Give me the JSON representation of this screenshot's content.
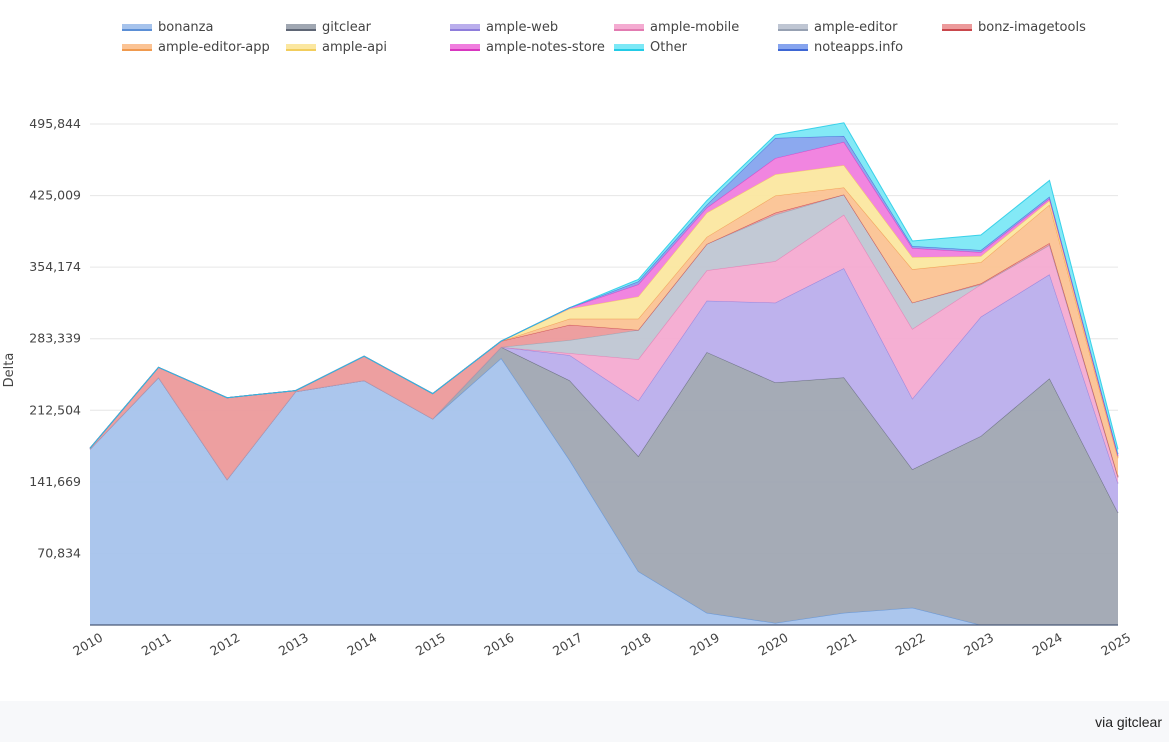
{
  "chart_data": {
    "type": "area",
    "stacked": true,
    "title": "",
    "xlabel": "",
    "ylabel": "Delta",
    "ylim": [
      0,
      495844
    ],
    "yticks": [
      "70,834",
      "141,669",
      "212,504",
      "283,339",
      "354,174",
      "425,009",
      "495,844"
    ],
    "ytick_values": [
      70834,
      141669,
      212504,
      283339,
      354174,
      425009,
      495844
    ],
    "grid": true,
    "legend_position": "top",
    "x": [
      "2010",
      "2011",
      "2012",
      "2013",
      "2014",
      "2015",
      "2016",
      "2017",
      "2018",
      "2019",
      "2020",
      "2021",
      "2022",
      "2023",
      "2024",
      "2025"
    ],
    "series": [
      {
        "name": "bonanza",
        "fill": "#a6c3ec",
        "line": "#5b8fd6",
        "values": [
          174000,
          245000,
          144000,
          231000,
          242000,
          204000,
          264000,
          163000,
          53000,
          12000,
          2000,
          12000,
          17000,
          0,
          0,
          0
        ]
      },
      {
        "name": "gitclear",
        "fill": "#a0a7b2",
        "line": "#5f6675",
        "values": [
          0,
          0,
          0,
          0,
          0,
          0,
          11000,
          79000,
          114000,
          258000,
          238000,
          233000,
          137000,
          187000,
          244000,
          111000
        ]
      },
      {
        "name": "ample-web",
        "fill": "#baaeec",
        "line": "#8e7ddb",
        "values": [
          0,
          0,
          0,
          0,
          0,
          0,
          0,
          25000,
          55000,
          51000,
          79000,
          108000,
          70000,
          118000,
          103000,
          29000
        ]
      },
      {
        "name": "ample-mobile",
        "fill": "#f4abd1",
        "line": "#e27bb1",
        "values": [
          0,
          0,
          0,
          0,
          0,
          0,
          0,
          2000,
          41000,
          30000,
          41000,
          53000,
          69000,
          32000,
          29000,
          6000
        ]
      },
      {
        "name": "ample-editor",
        "fill": "#bfc6d3",
        "line": "#97a1b2",
        "values": [
          0,
          0,
          0,
          0,
          0,
          0,
          0,
          13000,
          29000,
          26000,
          46000,
          20000,
          26000,
          0,
          0,
          0
        ]
      },
      {
        "name": "bonz-imagetools",
        "fill": "#ec9a9b",
        "line": "#c9474c",
        "values": [
          1000,
          10000,
          81000,
          1000,
          24000,
          25000,
          6000,
          15000,
          0,
          0,
          2000,
          0,
          0,
          1000,
          2000,
          1000
        ]
      },
      {
        "name": "ample-editor-app",
        "fill": "#fbc394",
        "line": "#f09a4e",
        "values": [
          0,
          0,
          0,
          0,
          0,
          0,
          0,
          6000,
          11000,
          7000,
          17000,
          7000,
          33000,
          21000,
          38000,
          18000
        ]
      },
      {
        "name": "ample-api",
        "fill": "#fbe7a0",
        "line": "#f2cd5c",
        "values": [
          0,
          0,
          0,
          0,
          0,
          0,
          0,
          10000,
          22000,
          24000,
          21000,
          22000,
          12000,
          6000,
          4000,
          1000
        ]
      },
      {
        "name": "ample-notes-store",
        "fill": "#f07ede",
        "line": "#d836bf",
        "values": [
          0,
          0,
          0,
          0,
          0,
          0,
          0,
          1000,
          12000,
          5000,
          16000,
          23000,
          9000,
          4000,
          2000,
          1000
        ]
      },
      {
        "name": "Other",
        "fill": "#7ce8f6",
        "line": "#22cbe6",
        "values": [
          0,
          0,
          0,
          0,
          0,
          0,
          0,
          0,
          2000,
          4000,
          3000,
          13000,
          5000,
          15000,
          16000,
          5000
        ]
      },
      {
        "name": "noteapps.info",
        "fill": "#86a4ee",
        "line": "#3d66d4",
        "values": [
          0,
          0,
          0,
          0,
          0,
          0,
          0,
          0,
          3000,
          3000,
          20000,
          6000,
          2000,
          2000,
          2000,
          2000
        ]
      }
    ],
    "stack_order": [
      "bonanza",
      "gitclear",
      "ample-web",
      "ample-mobile",
      "ample-editor",
      "bonz-imagetools",
      "ample-editor-app",
      "ample-api",
      "ample-notes-store",
      "noteapps.info",
      "Other"
    ]
  },
  "legend": [
    {
      "label": "bonanza",
      "color": "#a6c3ec",
      "line": "#5b8fd6"
    },
    {
      "label": "gitclear",
      "color": "#a0a7b2",
      "line": "#5f6675"
    },
    {
      "label": "ample-web",
      "color": "#baaeec",
      "line": "#8e7ddb"
    },
    {
      "label": "ample-mobile",
      "color": "#f4abd1",
      "line": "#e27bb1"
    },
    {
      "label": "ample-editor",
      "color": "#bfc6d3",
      "line": "#97a1b2"
    },
    {
      "label": "bonz-imagetools",
      "color": "#ec9a9b",
      "line": "#c9474c"
    },
    {
      "label": "ample-editor-app",
      "color": "#fbc394",
      "line": "#f09a4e"
    },
    {
      "label": "ample-api",
      "color": "#fbe7a0",
      "line": "#f2cd5c"
    },
    {
      "label": "ample-notes-store",
      "color": "#f07ede",
      "line": "#d836bf"
    },
    {
      "label": "Other",
      "color": "#7ce8f6",
      "line": "#22cbe6"
    },
    {
      "label": "noteapps.info",
      "color": "#86a4ee",
      "line": "#3d66d4"
    }
  ],
  "footer": {
    "attribution": "via gitclear"
  }
}
